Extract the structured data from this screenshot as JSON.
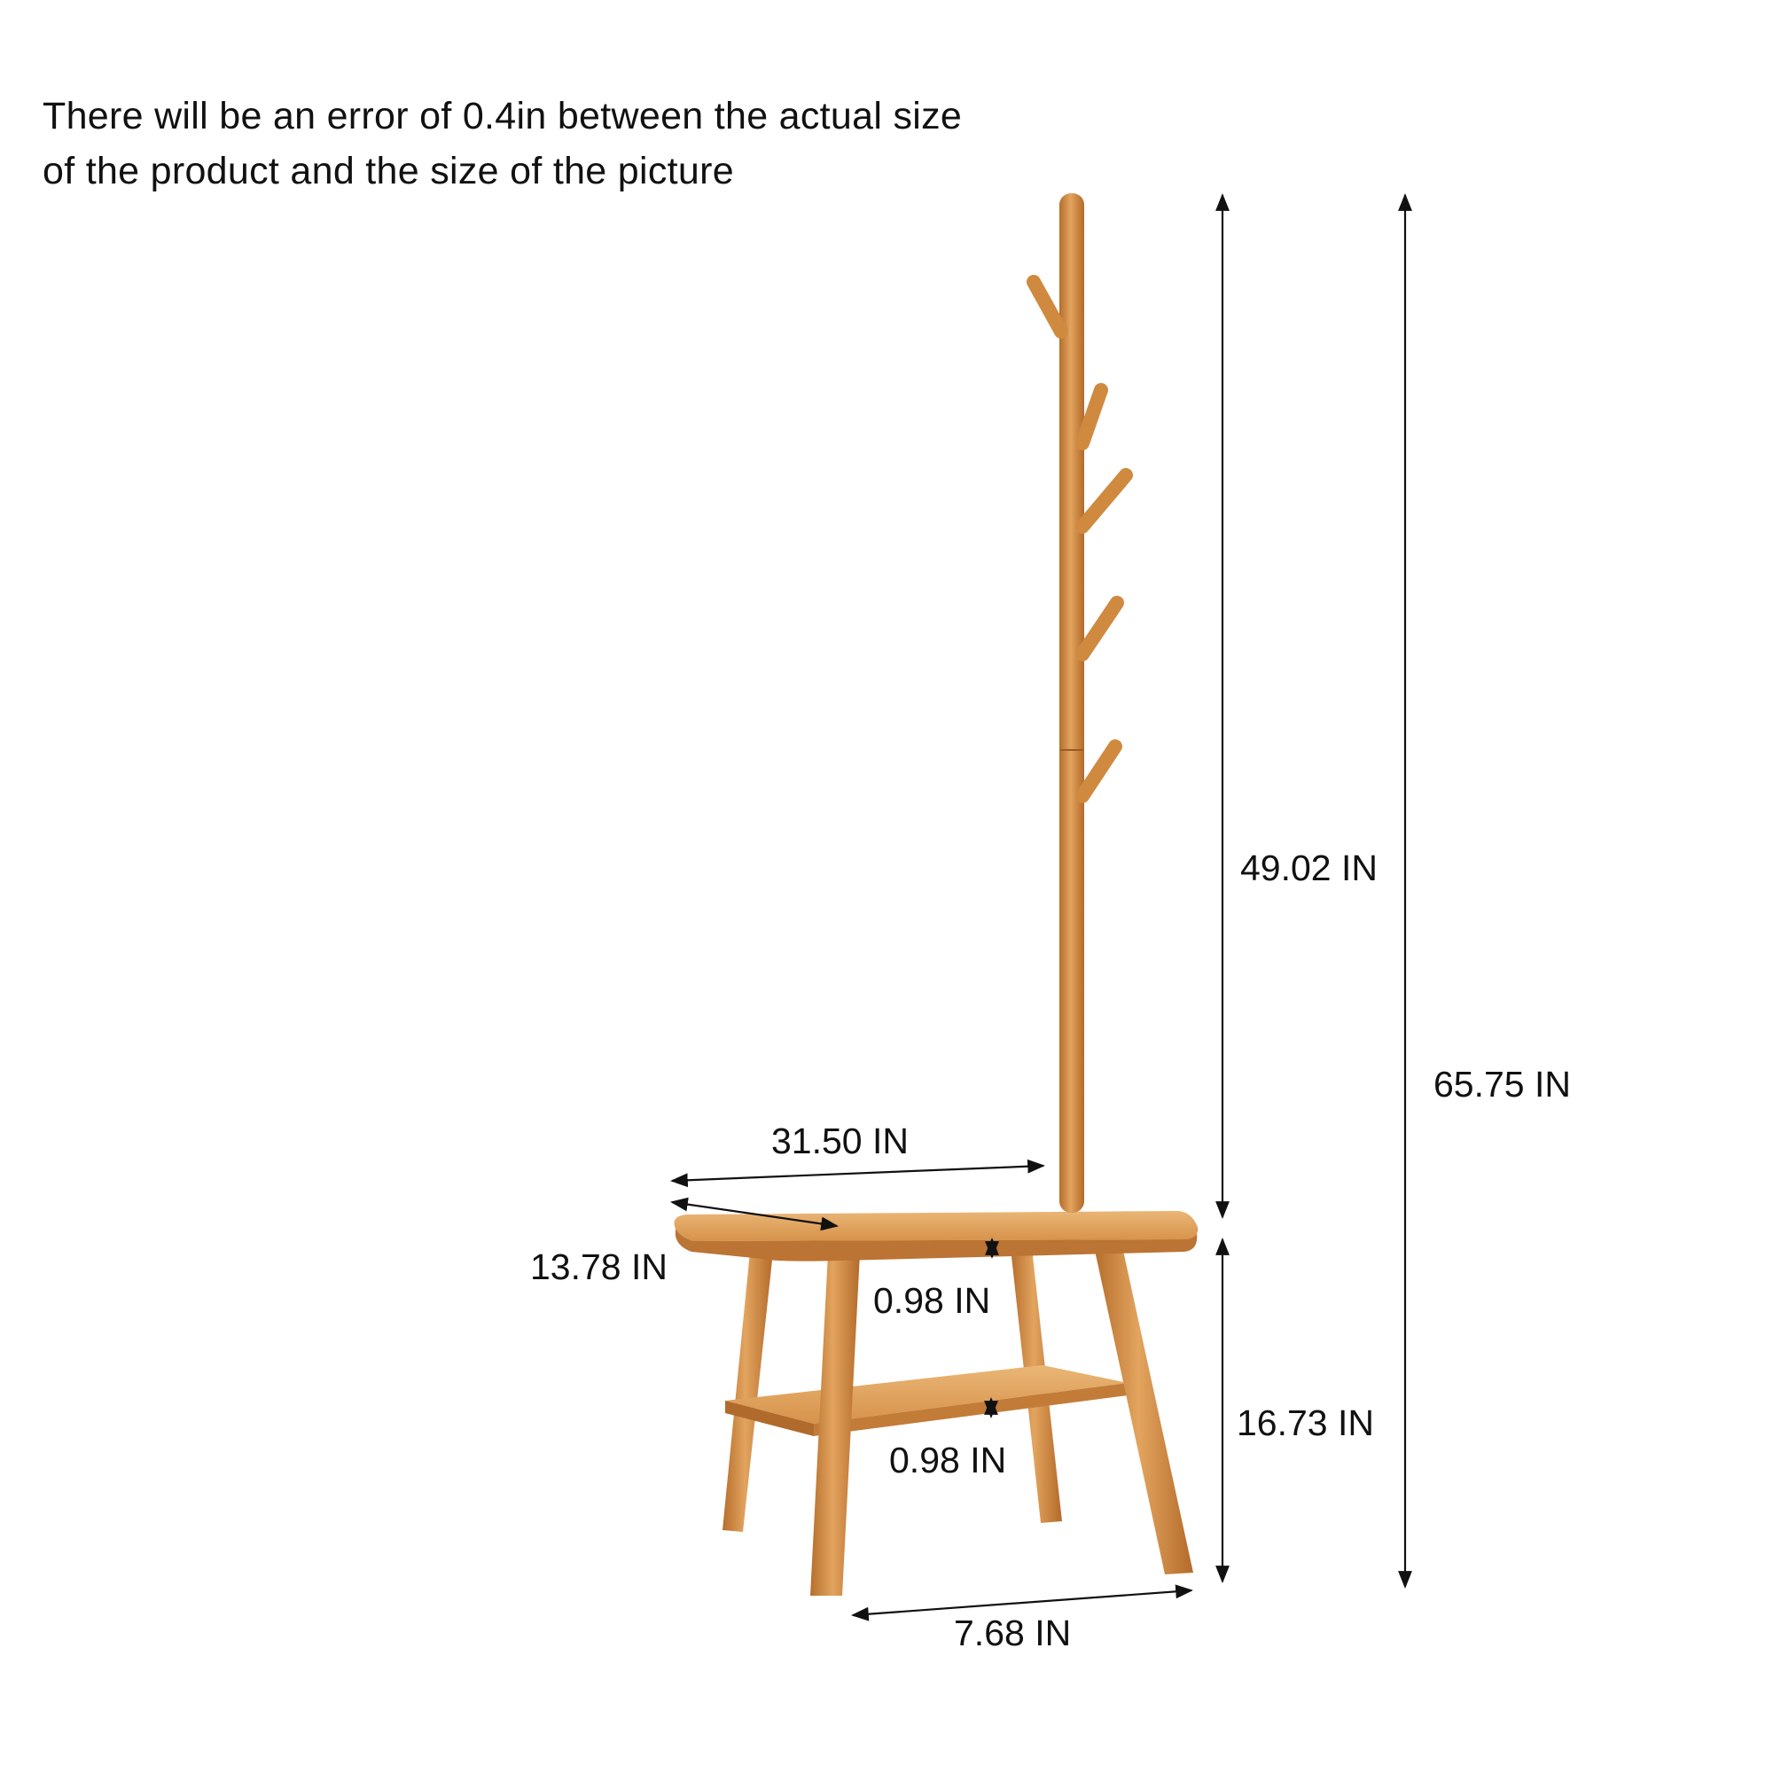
{
  "note": {
    "line1": "There will be an error of 0.4in between the actual size",
    "line2": "of the product and the size of the picture"
  },
  "dimensions": {
    "post_height": "49.02 IN",
    "total_height": "65.75 IN",
    "bench_height": "16.73 IN",
    "width": "31.50 IN",
    "depth": "13.78 IN",
    "top_thickness": "0.98 IN",
    "shelf_thickness": "0.98 IN",
    "leg_span": "7.68 IN"
  },
  "colors": {
    "wood": "#d08a3c",
    "wood_light": "#e6ad6a",
    "wood_dark": "#a9662a",
    "line": "#111111"
  }
}
